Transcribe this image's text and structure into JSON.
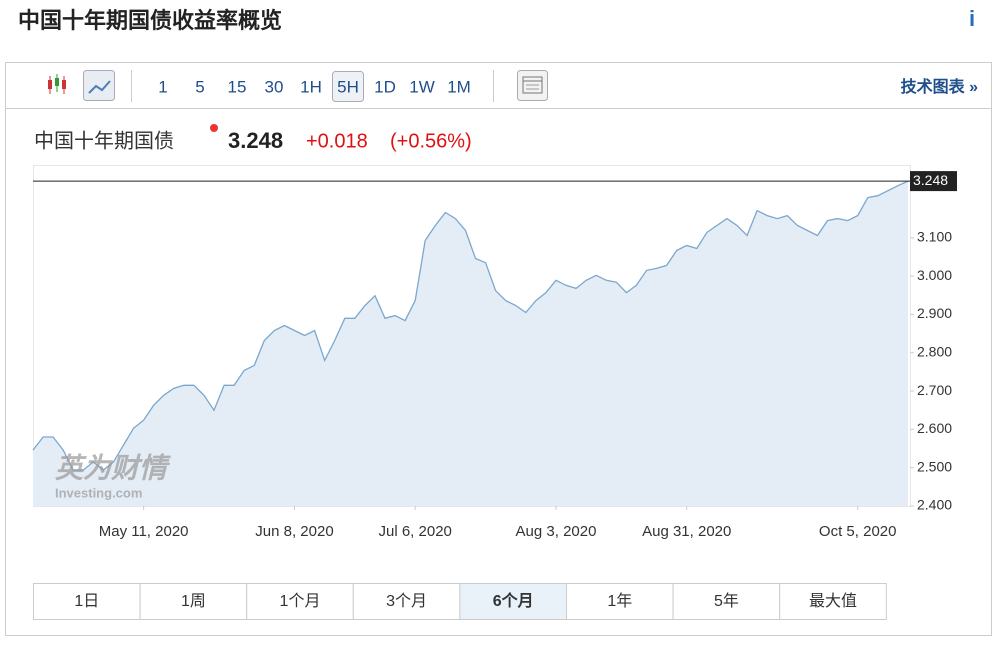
{
  "header": {
    "title": "中国十年期国债收益率概览",
    "info": "i"
  },
  "toolbar": {
    "intervals": [
      "1",
      "5",
      "15",
      "30",
      "1H",
      "5H",
      "1D",
      "1W",
      "1M"
    ],
    "selected": "5H",
    "link": "技术图表 »"
  },
  "quote": {
    "name": "中国十年期国债",
    "price": "3.248",
    "change": "+0.018",
    "change_pct": "(+0.56%)"
  },
  "watermark": {
    "cn": "英为财情",
    "en": "Investing.com"
  },
  "chart_data": {
    "type": "area",
    "categories": [
      null,
      null,
      null,
      null,
      null,
      null,
      null,
      null,
      null,
      null,
      null,
      "May 11, 2020",
      null,
      null,
      null,
      null,
      null,
      null,
      null,
      null,
      null,
      null,
      null,
      null,
      null,
      null,
      "Jun 8, 2020",
      null,
      null,
      null,
      null,
      null,
      null,
      null,
      null,
      null,
      null,
      null,
      "Jul 6, 2020",
      null,
      null,
      null,
      null,
      null,
      null,
      null,
      null,
      null,
      null,
      null,
      null,
      null,
      "Aug 3, 2020",
      null,
      null,
      null,
      null,
      null,
      null,
      null,
      null,
      null,
      null,
      null,
      null,
      "Aug 31, 2020",
      null,
      null,
      null,
      null,
      null,
      null,
      null,
      null,
      null,
      null,
      null,
      null,
      null,
      null,
      null,
      null,
      "Oct 5, 2020",
      null,
      null,
      null,
      null,
      null
    ],
    "values": [
      2.546,
      2.58,
      2.58,
      2.546,
      2.494,
      2.494,
      2.515,
      2.494,
      2.515,
      2.559,
      2.603,
      2.624,
      2.663,
      2.689,
      2.707,
      2.715,
      2.715,
      2.689,
      2.65,
      2.715,
      2.715,
      2.754,
      2.767,
      2.832,
      2.858,
      2.871,
      2.858,
      2.845,
      2.858,
      2.78,
      2.832,
      2.89,
      2.89,
      2.923,
      2.949,
      2.89,
      2.897,
      2.884,
      2.936,
      3.093,
      3.132,
      3.166,
      3.15,
      3.119,
      3.046,
      3.035,
      2.962,
      2.936,
      2.923,
      2.905,
      2.936,
      2.957,
      2.989,
      2.976,
      2.968,
      2.989,
      3.002,
      2.989,
      2.984,
      2.957,
      2.976,
      3.015,
      3.02,
      3.028,
      3.067,
      3.08,
      3.072,
      3.114,
      3.132,
      3.15,
      3.132,
      3.106,
      3.171,
      3.158,
      3.15,
      3.158,
      3.132,
      3.119,
      3.106,
      3.145,
      3.15,
      3.145,
      3.158,
      3.205,
      3.21,
      3.223,
      3.236,
      3.248
    ],
    "color": "#7ba7cf",
    "ylim": [
      2.4,
      3.29
    ],
    "yticks": [
      {
        "value": 2.4,
        "label": "2.400"
      },
      {
        "value": 2.5,
        "label": "2.500"
      },
      {
        "value": 2.6,
        "label": "2.600"
      },
      {
        "value": 2.7,
        "label": "2.700"
      },
      {
        "value": 2.8,
        "label": "2.800"
      },
      {
        "value": 2.9,
        "label": "2.900"
      },
      {
        "value": 3.0,
        "label": "3.000"
      },
      {
        "value": 3.1,
        "label": "3.100"
      }
    ]
  },
  "ranges": {
    "items": [
      "1日",
      "1周",
      "1个月",
      "3个月",
      "6个月",
      "1年",
      "5年",
      "最大值"
    ],
    "selected": "6个月"
  }
}
